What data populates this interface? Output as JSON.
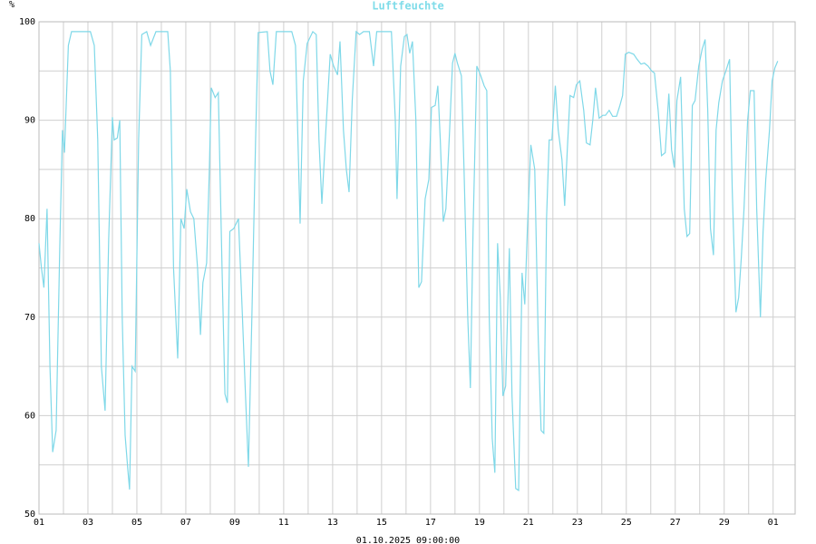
{
  "chart_data": {
    "type": "line",
    "title": "Luftfeuchte",
    "y_unit": "%",
    "footer": "01.10.2025 09:00:00",
    "color": "#7fd8e8",
    "xlim": [
      0,
      30.9
    ],
    "xticks": [
      {
        "value": 0,
        "label": "01"
      },
      {
        "value": 2,
        "label": "03"
      },
      {
        "value": 4,
        "label": "05"
      },
      {
        "value": 6,
        "label": "07"
      },
      {
        "value": 8,
        "label": "09"
      },
      {
        "value": 10,
        "label": "11"
      },
      {
        "value": 12,
        "label": "13"
      },
      {
        "value": 14,
        "label": "15"
      },
      {
        "value": 16,
        "label": "17"
      },
      {
        "value": 18,
        "label": "19"
      },
      {
        "value": 20,
        "label": "21"
      },
      {
        "value": 22,
        "label": "23"
      },
      {
        "value": 24,
        "label": "25"
      },
      {
        "value": 26,
        "label": "27"
      },
      {
        "value": 28,
        "label": "29"
      },
      {
        "value": 30,
        "label": "01"
      }
    ],
    "xminorticks": [
      1,
      3,
      5,
      7,
      9,
      11,
      13,
      15,
      17,
      19,
      21,
      23,
      25,
      27,
      29
    ],
    "ylim": [
      50,
      100
    ],
    "yticks": [
      50,
      60,
      70,
      80,
      90,
      100
    ],
    "yminorticks": [
      55,
      65,
      75,
      85,
      95
    ],
    "grid": true,
    "x": [
      0,
      0.1,
      0.2,
      0.33,
      0.45,
      0.56,
      0.7,
      0.85,
      0.96,
      1.04,
      1.2,
      1.33,
      2.1,
      2.26,
      2.4,
      2.55,
      2.7,
      2.85,
      3.0,
      3.07,
      3.2,
      3.3,
      3.4,
      3.52,
      3.63,
      3.7,
      3.8,
      3.93,
      4.07,
      4.2,
      4.4,
      4.56,
      4.78,
      5.26,
      5.37,
      5.5,
      5.67,
      5.8,
      5.93,
      6.04,
      6.19,
      6.33,
      6.48,
      6.6,
      6.7,
      6.85,
      6.96,
      7.04,
      7.2,
      7.33,
      7.48,
      7.6,
      7.7,
      7.8,
      7.96,
      8.15,
      8.3,
      8.44,
      8.56,
      8.7,
      8.85,
      8.96,
      9.33,
      9.44,
      9.56,
      9.7,
      10.33,
      10.48,
      10.67,
      10.8,
      10.96,
      11.19,
      11.33,
      11.44,
      11.56,
      11.7,
      11.9,
      12.04,
      12.2,
      12.3,
      12.44,
      12.56,
      12.67,
      12.8,
      12.96,
      13.1,
      13.26,
      13.5,
      13.67,
      13.8,
      14.4,
      14.56,
      14.63,
      14.78,
      14.93,
      15.04,
      15.15,
      15.26,
      15.4,
      15.52,
      15.63,
      15.78,
      15.93,
      16.04,
      16.19,
      16.3,
      16.4,
      16.52,
      16.63,
      16.78,
      16.9,
      17.0,
      17.1,
      17.26,
      17.37,
      17.52,
      17.63,
      17.74,
      17.89,
      18.04,
      18.19,
      18.3,
      18.4,
      18.52,
      18.63,
      18.74,
      18.85,
      18.96,
      19.07,
      19.22,
      19.33,
      19.48,
      19.6,
      19.74,
      19.85,
      19.96,
      20.1,
      20.26,
      20.4,
      20.52,
      20.63,
      20.74,
      20.85,
      20.96,
      21.1,
      21.22,
      21.37,
      21.48,
      21.59,
      21.7,
      21.85,
      21.96,
      22.1,
      22.26,
      22.37,
      22.52,
      22.63,
      22.74,
      22.89,
      23.04,
      23.15,
      23.3,
      23.44,
      23.6,
      23.74,
      23.85,
      23.96,
      24.1,
      24.3,
      24.44,
      24.6,
      24.74,
      24.89,
      25.04,
      25.15,
      25.3,
      25.44,
      25.59,
      25.74,
      25.85,
      25.96,
      26.07,
      26.22,
      26.37,
      26.48,
      26.59,
      26.7,
      26.81,
      26.96,
      27.1,
      27.22,
      27.33,
      27.44,
      27.56,
      27.67,
      27.78,
      27.93,
      28.07,
      28.22,
      28.33,
      28.48,
      28.59,
      28.7,
      28.81,
      28.96,
      29.07,
      29.22,
      29.33,
      29.48,
      29.59,
      29.7,
      29.85,
      29.96,
      30.07,
      30.19
    ],
    "values": [
      77.5,
      75,
      73,
      81,
      65,
      56.3,
      58.5,
      77,
      89,
      86.7,
      97.6,
      99,
      99,
      97.6,
      88,
      65,
      60.5,
      78,
      90.3,
      88,
      88.2,
      90,
      70,
      58,
      54.5,
      52.5,
      65,
      64.5,
      88,
      98.7,
      99,
      97.6,
      99,
      99,
      95,
      75,
      65.8,
      80,
      79,
      83,
      80.7,
      80,
      75,
      68.2,
      73.5,
      75.5,
      85,
      93.3,
      92.3,
      92.8,
      75,
      62.2,
      61.3,
      78.7,
      79,
      80,
      71,
      62,
      54.8,
      70,
      88,
      98.9,
      99,
      95,
      93.6,
      99,
      99,
      97.6,
      79.5,
      94,
      97.8,
      99,
      98.7,
      88,
      81.5,
      88,
      96.7,
      95.5,
      94.6,
      98,
      89,
      85,
      82.7,
      92,
      99,
      98.7,
      99,
      99,
      95.5,
      99,
      99,
      90,
      82,
      95.5,
      98.5,
      98.7,
      96.8,
      98,
      90,
      73,
      73.6,
      82,
      84,
      91.3,
      91.5,
      93.5,
      88,
      79.7,
      81,
      89,
      95.8,
      96.8,
      95.8,
      94.5,
      85,
      70,
      62.8,
      79,
      95.5,
      94.6,
      93.5,
      93,
      70,
      57.7,
      54.2,
      77.5,
      72,
      62,
      63,
      77,
      62,
      52.6,
      52.4,
      74.5,
      71.3,
      79,
      87.5,
      85,
      68,
      58.5,
      58.2,
      80,
      88,
      88,
      93.5,
      89,
      86,
      81.3,
      87,
      92.5,
      92.3,
      93.6,
      94,
      91,
      87.7,
      87.5,
      90,
      93.3,
      90.2,
      90.5,
      90.5,
      91,
      90.4,
      90.4,
      91.5,
      92.5,
      96.7,
      96.9,
      96.7,
      96.2,
      95.7,
      95.8,
      95.5,
      95,
      94.8,
      91,
      86.4,
      86.7,
      92.7,
      87,
      85.2,
      92,
      94.4,
      81,
      78.2,
      78.5,
      91.5,
      92,
      95.5,
      97.2,
      98.2,
      91,
      79,
      76.3,
      89,
      91.8,
      94,
      95,
      96.2,
      83,
      70.5,
      72,
      76,
      81,
      90,
      93,
      93,
      81,
      70,
      78.6,
      84,
      89,
      94,
      95.3,
      96
    ]
  }
}
